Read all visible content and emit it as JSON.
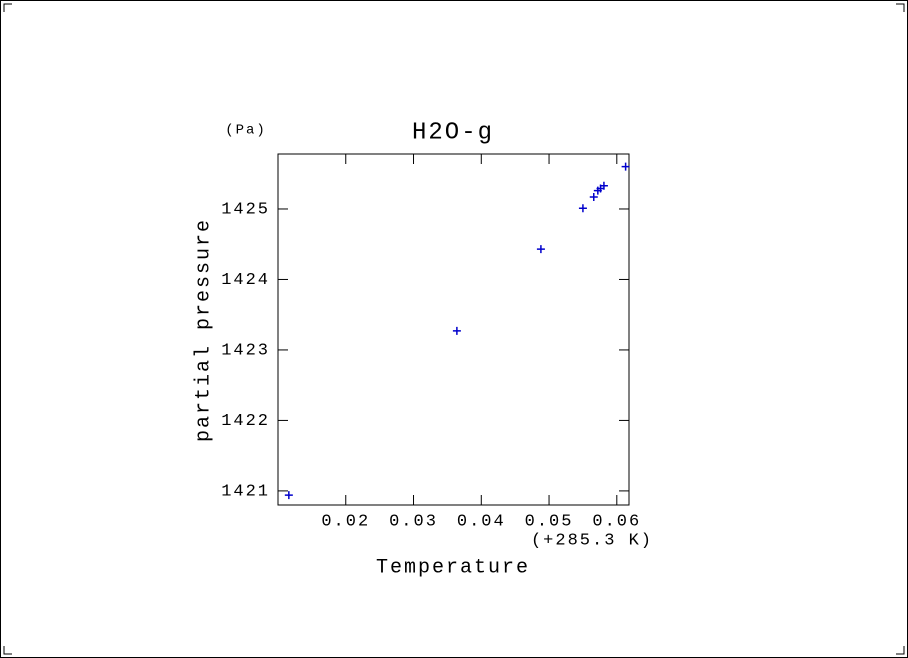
{
  "chart_data": {
    "type": "scatter",
    "title": "H2O-g",
    "x_label": "Temperature",
    "x_offset_label": "(+285.3 K)",
    "y_label": "partial pressure",
    "y_unit_label": "(Pa)",
    "x": [
      0.0116,
      0.0364,
      0.0488,
      0.055,
      0.0566,
      0.0572,
      0.0576,
      0.0581,
      0.0613
    ],
    "values": [
      1420.94,
      1423.27,
      1424.43,
      1425.01,
      1425.17,
      1425.26,
      1425.29,
      1425.33,
      1425.6
    ],
    "color": "#0000cc",
    "xlim": [
      0.01,
      0.0618
    ],
    "xticks": [
      0.02,
      0.03,
      0.04,
      0.05,
      0.06
    ],
    "ylim": [
      1420.8,
      1425.78
    ],
    "yticks": [
      1421,
      1422,
      1423,
      1424,
      1425
    ],
    "grid": false
  }
}
